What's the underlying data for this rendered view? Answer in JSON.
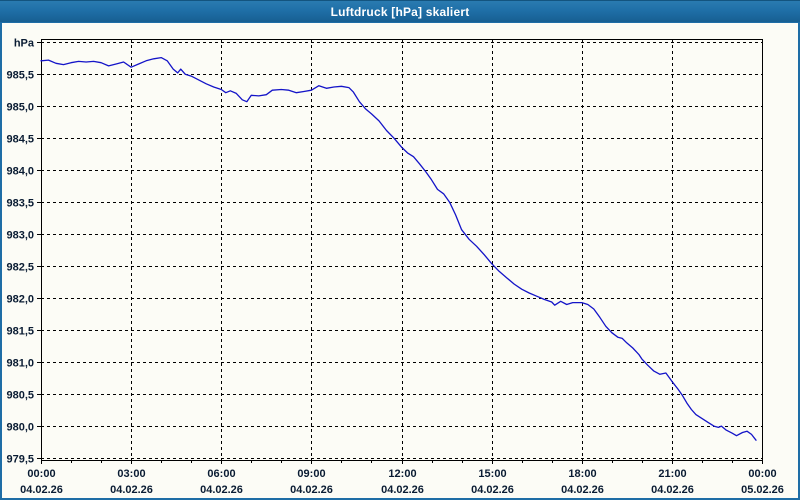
{
  "window": {
    "title": "Luftdruck [hPa] skaliert"
  },
  "colors": {
    "titlebar_blue": "#1f6fa7",
    "window_border_blue": "#1e6da6",
    "title_text": "#ffffff",
    "plot_background": "#fcfcf6",
    "grid_color": "#000000",
    "frame_color": "#000000",
    "axis_text_color": "#0a1c33",
    "curve_color": "#1414c8"
  },
  "chart_data": {
    "type": "line",
    "title": "Luftdruck [hPa] skaliert",
    "unit_label": "hPa",
    "grid_style": "dashed",
    "legend": "none",
    "x_axis": {
      "range_hours": [
        0,
        24
      ],
      "major_tick_hours": 3,
      "minor_tick_hours": 1,
      "tick_labels": [
        {
          "time": "00:00",
          "date": "04.02.26",
          "hour": 0
        },
        {
          "time": "03:00",
          "date": "04.02.26",
          "hour": 3
        },
        {
          "time": "06:00",
          "date": "04.02.26",
          "hour": 6
        },
        {
          "time": "09:00",
          "date": "04.02.26",
          "hour": 9
        },
        {
          "time": "12:00",
          "date": "04.02.26",
          "hour": 12
        },
        {
          "time": "15:00",
          "date": "04.02.26",
          "hour": 15
        },
        {
          "time": "18:00",
          "date": "04.02.26",
          "hour": 18
        },
        {
          "time": "21:00",
          "date": "04.02.26",
          "hour": 21
        },
        {
          "time": "00:00",
          "date": "05.02.26",
          "hour": 24
        }
      ]
    },
    "y_axis": {
      "range": [
        979.47,
        986.05
      ],
      "gridline_step": 0.5,
      "gridlines": [
        {
          "value": 986.0,
          "label": "hPa",
          "is_unit_label": true
        },
        {
          "value": 985.5,
          "label": "985,5"
        },
        {
          "value": 985.0,
          "label": "985,0"
        },
        {
          "value": 984.5,
          "label": "984,5"
        },
        {
          "value": 984.0,
          "label": "984,0"
        },
        {
          "value": 983.5,
          "label": "983,5"
        },
        {
          "value": 983.0,
          "label": "983,0"
        },
        {
          "value": 982.5,
          "label": "982,5"
        },
        {
          "value": 982.0,
          "label": "982,0"
        },
        {
          "value": 981.5,
          "label": "981,5"
        },
        {
          "value": 981.0,
          "label": "981,0"
        },
        {
          "value": 980.5,
          "label": "980,5"
        },
        {
          "value": 980.0,
          "label": "980,0"
        },
        {
          "value": 979.5,
          "label": "979,5"
        }
      ]
    },
    "series": [
      {
        "name": "Luftdruck",
        "unit": "hPa",
        "color": "#1414c8",
        "points": [
          [
            0,
            985.71
          ],
          [
            0.25,
            985.72
          ],
          [
            0.5,
            985.67
          ],
          [
            0.75,
            985.65
          ],
          [
            1,
            985.68
          ],
          [
            1.25,
            985.7
          ],
          [
            1.5,
            985.69
          ],
          [
            1.75,
            985.7
          ],
          [
            2,
            985.68
          ],
          [
            2.25,
            985.63
          ],
          [
            2.5,
            985.66
          ],
          [
            2.75,
            985.69
          ],
          [
            3,
            985.61
          ],
          [
            3.25,
            985.66
          ],
          [
            3.5,
            985.71
          ],
          [
            3.75,
            985.74
          ],
          [
            4,
            985.76
          ],
          [
            4.2,
            985.71
          ],
          [
            4.4,
            985.58
          ],
          [
            4.55,
            985.52
          ],
          [
            4.65,
            985.58
          ],
          [
            4.8,
            985.5
          ],
          [
            5,
            985.47
          ],
          [
            5.25,
            985.41
          ],
          [
            5.5,
            985.35
          ],
          [
            5.75,
            985.3
          ],
          [
            6,
            985.26
          ],
          [
            6.15,
            985.21
          ],
          [
            6.3,
            985.24
          ],
          [
            6.5,
            985.2
          ],
          [
            6.7,
            985.1
          ],
          [
            6.85,
            985.07
          ],
          [
            7,
            985.17
          ],
          [
            7.25,
            985.16
          ],
          [
            7.5,
            985.18
          ],
          [
            7.7,
            985.25
          ],
          [
            8,
            985.26
          ],
          [
            8.25,
            985.25
          ],
          [
            8.5,
            985.21
          ],
          [
            8.75,
            985.23
          ],
          [
            9,
            985.25
          ],
          [
            9.25,
            985.32
          ],
          [
            9.5,
            985.28
          ],
          [
            9.75,
            985.3
          ],
          [
            10,
            985.31
          ],
          [
            10.25,
            985.29
          ],
          [
            10.4,
            985.22
          ],
          [
            10.6,
            985.07
          ],
          [
            10.8,
            984.96
          ],
          [
            11,
            984.88
          ],
          [
            11.25,
            984.77
          ],
          [
            11.5,
            984.62
          ],
          [
            11.75,
            984.5
          ],
          [
            12,
            984.36
          ],
          [
            12.2,
            984.27
          ],
          [
            12.4,
            984.21
          ],
          [
            12.6,
            984.1
          ],
          [
            12.8,
            983.98
          ],
          [
            13,
            983.85
          ],
          [
            13.2,
            983.7
          ],
          [
            13.4,
            983.63
          ],
          [
            13.6,
            983.5
          ],
          [
            13.8,
            983.3
          ],
          [
            14,
            983.07
          ],
          [
            14.25,
            982.92
          ],
          [
            14.5,
            982.81
          ],
          [
            14.75,
            982.68
          ],
          [
            15,
            982.54
          ],
          [
            15.25,
            982.42
          ],
          [
            15.5,
            982.32
          ],
          [
            15.75,
            982.22
          ],
          [
            16,
            982.14
          ],
          [
            16.25,
            982.08
          ],
          [
            16.5,
            982.03
          ],
          [
            16.75,
            981.98
          ],
          [
            17,
            981.94
          ],
          [
            17.1,
            981.89
          ],
          [
            17.3,
            981.95
          ],
          [
            17.5,
            981.9
          ],
          [
            17.7,
            981.93
          ],
          [
            18,
            981.93
          ],
          [
            18.2,
            981.9
          ],
          [
            18.4,
            981.83
          ],
          [
            18.6,
            981.7
          ],
          [
            18.8,
            981.56
          ],
          [
            19,
            981.46
          ],
          [
            19.2,
            981.39
          ],
          [
            19.35,
            981.37
          ],
          [
            19.5,
            981.3
          ],
          [
            19.7,
            981.22
          ],
          [
            19.9,
            981.12
          ],
          [
            20,
            981.05
          ],
          [
            20.2,
            980.95
          ],
          [
            20.4,
            980.86
          ],
          [
            20.6,
            980.81
          ],
          [
            20.8,
            980.83
          ],
          [
            21,
            980.7
          ],
          [
            21.2,
            980.58
          ],
          [
            21.35,
            980.48
          ],
          [
            21.5,
            980.36
          ],
          [
            21.65,
            980.26
          ],
          [
            21.8,
            980.18
          ],
          [
            22,
            980.12
          ],
          [
            22.2,
            980.06
          ],
          [
            22.4,
            980.0
          ],
          [
            22.55,
            979.98
          ],
          [
            22.65,
            980.0
          ],
          [
            22.8,
            979.94
          ],
          [
            23,
            979.89
          ],
          [
            23.15,
            979.85
          ],
          [
            23.35,
            979.9
          ],
          [
            23.5,
            979.92
          ],
          [
            23.65,
            979.87
          ],
          [
            23.8,
            979.78
          ]
        ]
      }
    ]
  }
}
